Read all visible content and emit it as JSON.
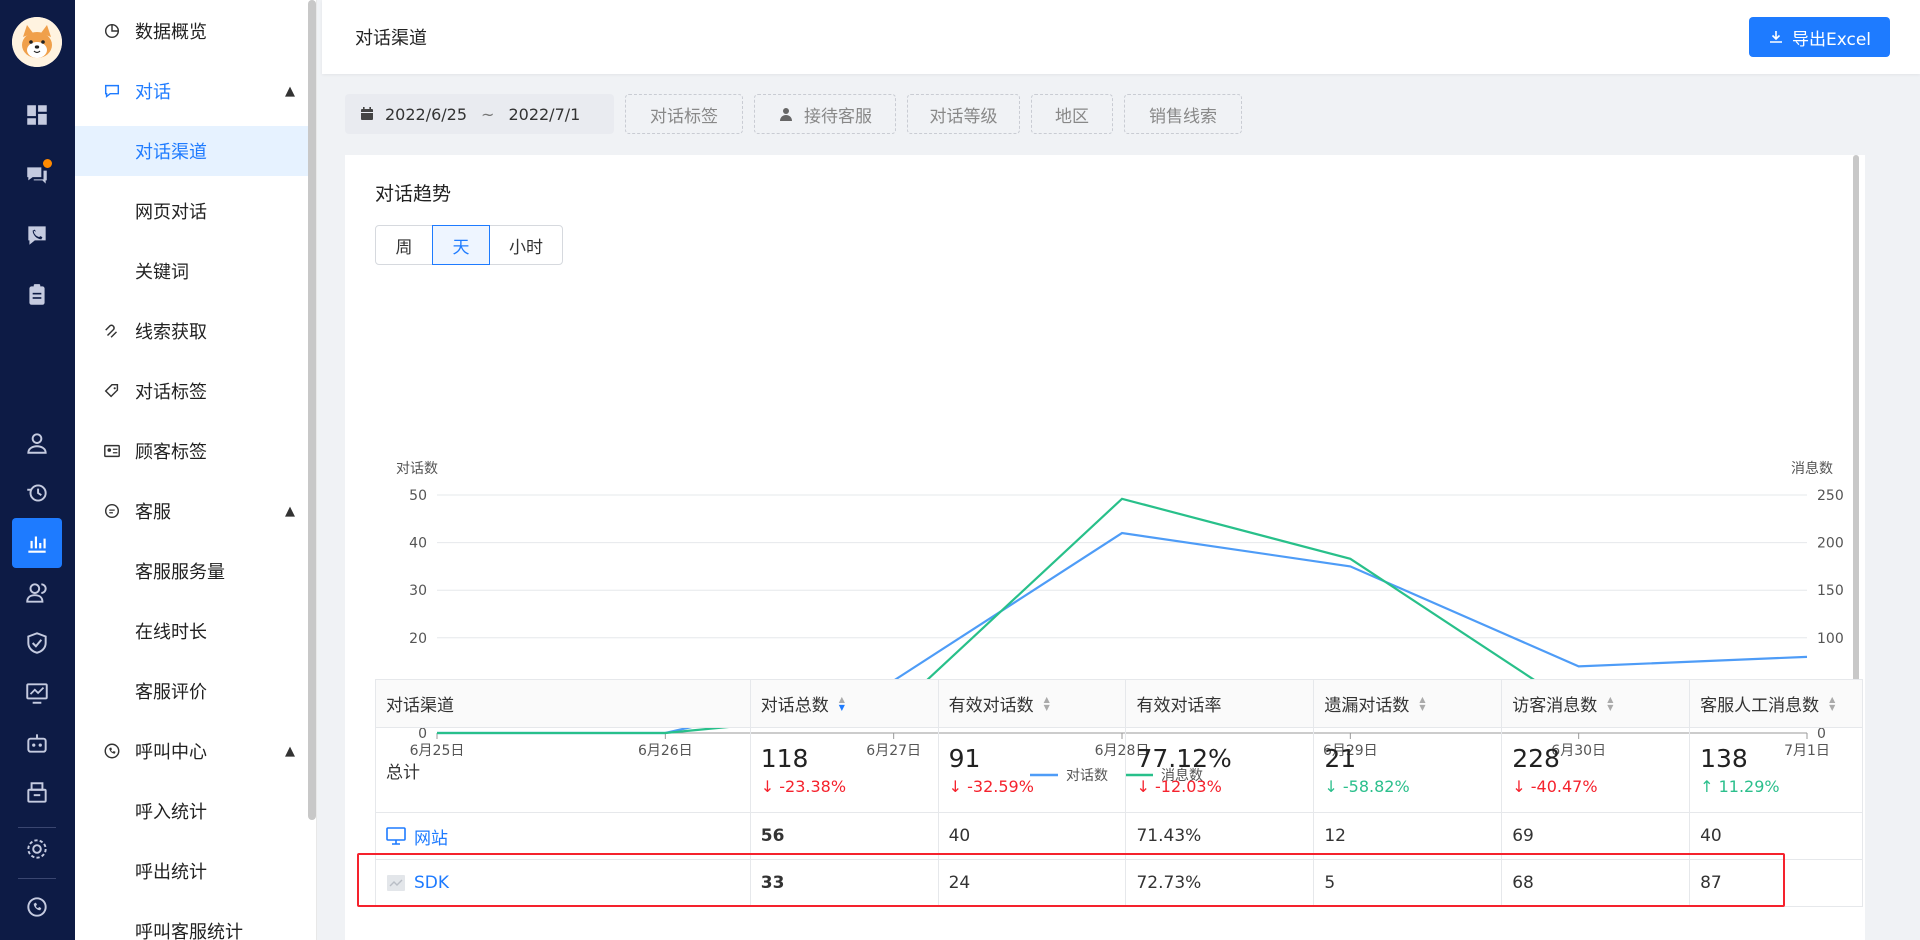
{
  "header": {
    "title": "对话渠道",
    "export_label": "导出Excel"
  },
  "sidebar": {
    "items": [
      {
        "label": "数据概览",
        "icon": "pie-chart-icon"
      },
      {
        "label": "对话",
        "icon": "chat-icon",
        "expanded": true
      },
      {
        "label": "对话渠道",
        "selected": true
      },
      {
        "label": "网页对话"
      },
      {
        "label": "关键词"
      },
      {
        "label": "线索获取",
        "icon": "magnet-icon"
      },
      {
        "label": "对话标签",
        "icon": "tag-icon"
      },
      {
        "label": "顾客标签",
        "icon": "id-card-icon"
      },
      {
        "label": "客服",
        "icon": "service-icon",
        "expanded": true
      },
      {
        "label": "客服服务量"
      },
      {
        "label": "在线时长"
      },
      {
        "label": "客服评价"
      },
      {
        "label": "呼叫中心",
        "icon": "phone-icon",
        "expanded": true
      },
      {
        "label": "呼入统计"
      },
      {
        "label": "呼出统计"
      },
      {
        "label": "呼叫客服统计"
      }
    ]
  },
  "filters": {
    "date_start": "2022/6/25",
    "date_sep": "~",
    "date_end": "2022/7/1",
    "tag": "对话标签",
    "agent": "接待客服",
    "level": "对话等级",
    "region": "地区",
    "leads": "销售线索"
  },
  "card": {
    "title": "对话趋势",
    "granularity": [
      "周",
      "天",
      "小时"
    ],
    "granularity_selected": "天"
  },
  "chart_data": {
    "type": "line",
    "categories": [
      "6月25日",
      "6月26日",
      "6月27日",
      "6月28日",
      "6月29日",
      "6月30日",
      "7月1日"
    ],
    "series": [
      {
        "name": "对话数",
        "axis": "left",
        "color": "#4e9cf7",
        "values": [
          0,
          0,
          11,
          42,
          35,
          14,
          16
        ]
      },
      {
        "name": "消息数",
        "axis": "right",
        "color": "#28c08a",
        "values": [
          0,
          0,
          23,
          246,
          183,
          25,
          50
        ]
      }
    ],
    "ylabel_left": "对话数",
    "ylabel_right": "消息数",
    "ylim_left": [
      0,
      50
    ],
    "ylim_right": [
      0,
      250
    ],
    "yticks_left": [
      "0",
      "10",
      "20",
      "30",
      "40",
      "50"
    ],
    "yticks_right": [
      "0",
      "50",
      "100",
      "150",
      "200",
      "250"
    ],
    "legend": "bottom-center",
    "grid": true
  },
  "table": {
    "columns": [
      "对话渠道",
      "对话总数",
      "有效对话数",
      "有效对话率",
      "遗漏对话数",
      "访客消息数",
      "客服人工消息数"
    ],
    "total": {
      "label": "总计",
      "values": [
        "118",
        "91",
        "77.12%",
        "21",
        "228",
        "138"
      ],
      "changes": [
        "-23.38%",
        "-32.59%",
        "-12.03%",
        "-58.82%",
        "-40.47%",
        "11.29%"
      ]
    },
    "rows": [
      {
        "channel": "网站",
        "icon": "monitor-icon",
        "values": [
          "56",
          "40",
          "71.43%",
          "12",
          "69",
          "40"
        ]
      },
      {
        "channel": "SDK",
        "icon": "sdk-icon",
        "values": [
          "33",
          "24",
          "72.73%",
          "5",
          "68",
          "87"
        ]
      }
    ]
  }
}
